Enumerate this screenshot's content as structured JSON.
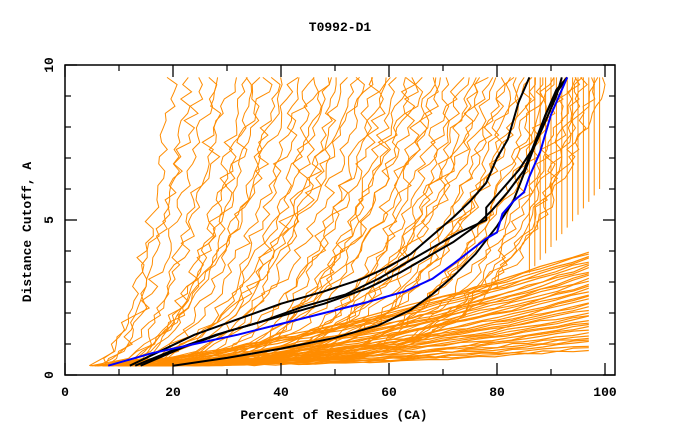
{
  "chart_data": {
    "type": "line",
    "title": "T0992-D1",
    "xlabel": "Percent of Residues (CA)",
    "ylabel": "Distance Cutoff, A",
    "xlim": [
      0,
      102
    ],
    "ylim": [
      0,
      10
    ],
    "x_ticks": [
      0,
      20,
      40,
      60,
      80,
      100
    ],
    "x_tick_labels": [
      "0",
      "20",
      "40",
      "60",
      "80",
      "100"
    ],
    "x_minor_ticks": [
      10,
      30,
      50,
      70,
      90
    ],
    "y_ticks": [
      0,
      5,
      10
    ],
    "y_tick_labels": [
      "0",
      "5",
      "10"
    ],
    "y_minor_ticks": [
      1,
      2,
      3,
      4,
      6,
      7,
      8,
      9
    ],
    "grid": false,
    "legend": "none",
    "colors": {
      "background_models": "#ff8c00",
      "highlight_models": "#000000",
      "reference_model": "#0000ff",
      "axes": "#000000"
    },
    "series": [
      {
        "name": "highlight-1",
        "color": "#000000",
        "points": [
          [
            20,
            0.3
          ],
          [
            30,
            0.55
          ],
          [
            40,
            0.85
          ],
          [
            50,
            1.2
          ],
          [
            58,
            1.6
          ],
          [
            64,
            2.1
          ],
          [
            68,
            2.6
          ],
          [
            72,
            3.2
          ],
          [
            76,
            3.9
          ],
          [
            80,
            4.8
          ],
          [
            83,
            5.6
          ],
          [
            85,
            6.5
          ],
          [
            87,
            7.4
          ],
          [
            89,
            8.4
          ],
          [
            91,
            9.1
          ],
          [
            93,
            9.6
          ]
        ]
      },
      {
        "name": "highlight-2",
        "color": "#000000",
        "points": [
          [
            12,
            0.3
          ],
          [
            18,
            0.8
          ],
          [
            24,
            1.3
          ],
          [
            32,
            1.8
          ],
          [
            40,
            2.3
          ],
          [
            48,
            2.7
          ],
          [
            55,
            3.1
          ],
          [
            60,
            3.5
          ],
          [
            64,
            3.9
          ],
          [
            68,
            4.5
          ],
          [
            72,
            5.1
          ],
          [
            75,
            5.6
          ],
          [
            78,
            6.2
          ],
          [
            80,
            7.0
          ],
          [
            82,
            7.6
          ],
          [
            84,
            8.8
          ],
          [
            86,
            9.6
          ]
        ]
      },
      {
        "name": "highlight-3",
        "color": "#000000",
        "points": [
          [
            13,
            0.3
          ],
          [
            20,
            0.8
          ],
          [
            28,
            1.3
          ],
          [
            36,
            1.7
          ],
          [
            44,
            2.2
          ],
          [
            52,
            2.6
          ],
          [
            58,
            3.1
          ],
          [
            63,
            3.6
          ],
          [
            68,
            4.1
          ],
          [
            73,
            4.6
          ],
          [
            78,
            5.0
          ],
          [
            78,
            5.4
          ],
          [
            81,
            6.0
          ],
          [
            84,
            6.6
          ],
          [
            87,
            7.4
          ],
          [
            89,
            8.2
          ],
          [
            91,
            9.0
          ],
          [
            92,
            9.6
          ]
        ]
      },
      {
        "name": "highlight-4",
        "color": "#000000",
        "points": [
          [
            14,
            0.3
          ],
          [
            22,
            0.9
          ],
          [
            30,
            1.4
          ],
          [
            40,
            1.9
          ],
          [
            48,
            2.3
          ],
          [
            56,
            2.8
          ],
          [
            62,
            3.3
          ],
          [
            68,
            3.9
          ],
          [
            72,
            4.3
          ],
          [
            76,
            4.8
          ],
          [
            79,
            5.3
          ],
          [
            82,
            5.9
          ],
          [
            85,
            6.6
          ],
          [
            87,
            7.5
          ],
          [
            89,
            8.4
          ],
          [
            91,
            9.2
          ],
          [
            93,
            9.6
          ]
        ]
      },
      {
        "name": "reference-blue",
        "color": "#0000ff",
        "points": [
          [
            8,
            0.3
          ],
          [
            16,
            0.7
          ],
          [
            24,
            1.0
          ],
          [
            32,
            1.3
          ],
          [
            40,
            1.65
          ],
          [
            48,
            2.0
          ],
          [
            56,
            2.35
          ],
          [
            63,
            2.7
          ],
          [
            68,
            3.1
          ],
          [
            72,
            3.6
          ],
          [
            75,
            4.0
          ],
          [
            78,
            4.4
          ],
          [
            80,
            4.6
          ],
          [
            81,
            5.2
          ],
          [
            83,
            5.6
          ],
          [
            85,
            5.9
          ],
          [
            86,
            6.4
          ],
          [
            88,
            7.2
          ],
          [
            90,
            8.4
          ],
          [
            92,
            9.2
          ],
          [
            93,
            9.6
          ]
        ]
      }
    ],
    "background_series_count": 60
  }
}
